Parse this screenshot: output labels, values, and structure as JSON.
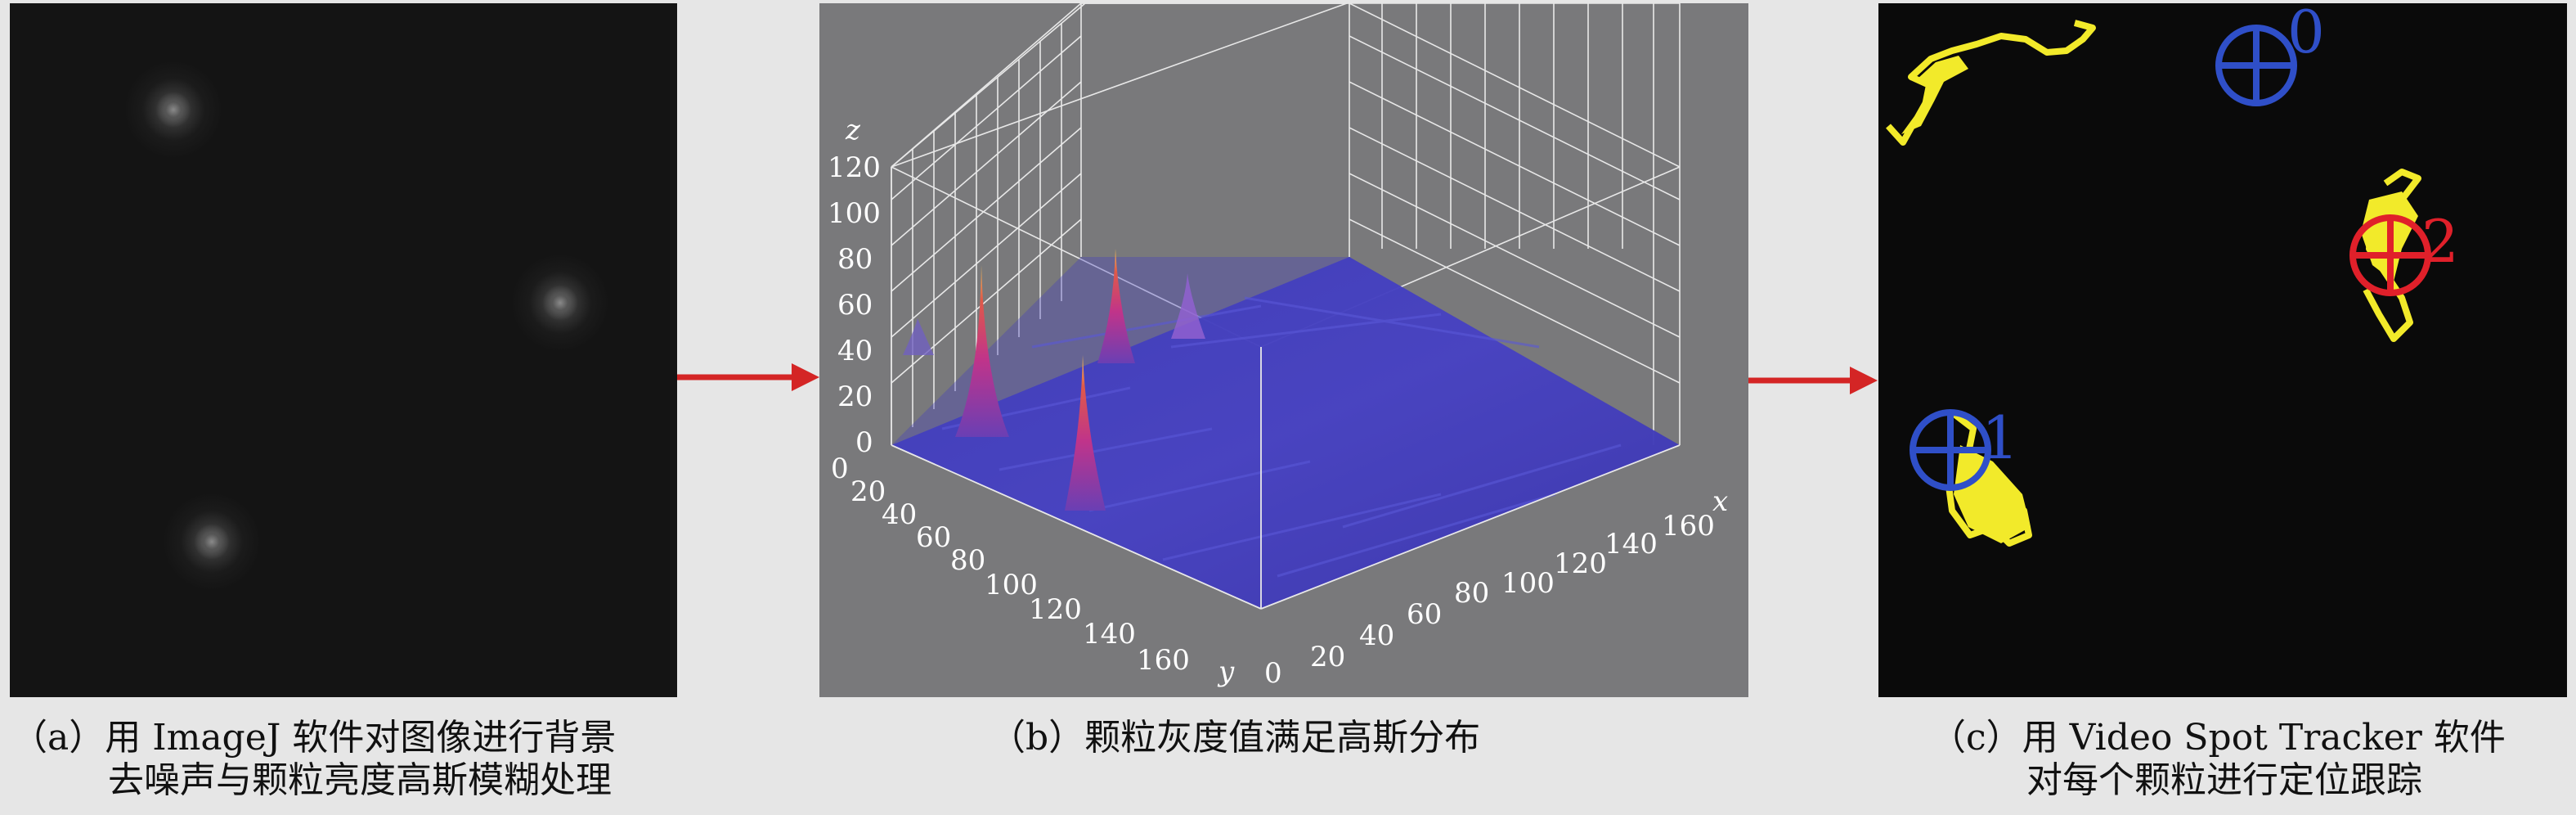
{
  "figure": {
    "captions": {
      "a_line1": "（a）用 ImageJ 软件对图像进行背景",
      "a_line2": "去噪声与颗粒亮度高斯模糊处理",
      "b_line1": "（b）颗粒灰度值满足高斯分布",
      "c_line1": "（c）用 Video Spot Tracker 软件",
      "c_line2": "对每个颗粒进行定位跟踪"
    },
    "arrow_color": "#d42525"
  },
  "surface_plot": {
    "z_label": "z",
    "x_label": "x",
    "y_label": "y",
    "z_ticks": [
      "120",
      "100",
      "80",
      "60",
      "40",
      "20",
      "0"
    ],
    "y_ticks": [
      "0",
      "20",
      "40",
      "60",
      "80",
      "100",
      "120",
      "140",
      "160"
    ],
    "x_ticks": [
      "0",
      "20",
      "40",
      "60",
      "80",
      "100",
      "120",
      "140",
      "160"
    ]
  },
  "tracker": {
    "labels": [
      "0",
      "1",
      "2"
    ],
    "colors": {
      "blue": "#2f4fc8",
      "red": "#e0202a",
      "yellow": "#f2ea2a"
    }
  }
}
